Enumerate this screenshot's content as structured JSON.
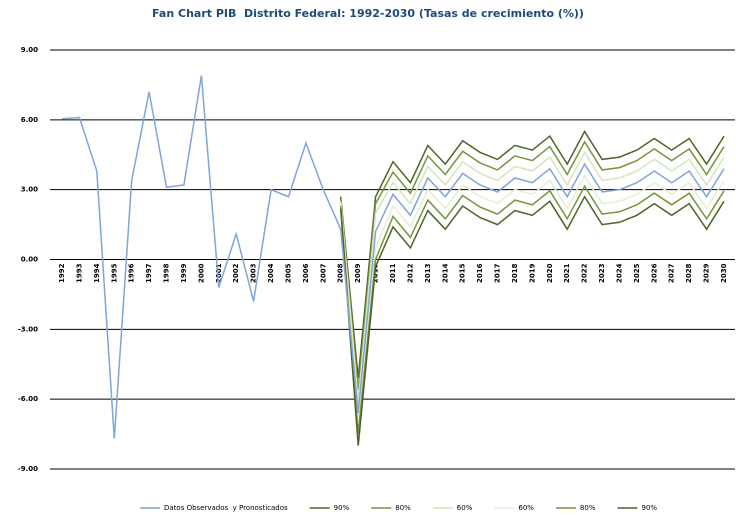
{
  "chart_data": {
    "type": "line",
    "title": "Fan Chart PIB  Distrito Federal: 1992-2030 (Tasas de crecimiento (%))",
    "categories": [
      "1992",
      "1993",
      "1994",
      "1995",
      "1996",
      "1997",
      "1998",
      "1999",
      "2000",
      "2001",
      "2002",
      "2003",
      "2004",
      "2005",
      "2006",
      "2007",
      "2008",
      "2009",
      "2010",
      "2011",
      "2012",
      "2013",
      "2014",
      "2015",
      "2016",
      "2017",
      "2018",
      "2019",
      "2020",
      "2021",
      "2022",
      "2023",
      "2024",
      "2025",
      "2026",
      "2027",
      "2028",
      "2029",
      "2030"
    ],
    "ylim": [
      -9,
      9
    ],
    "yticks": [
      {
        "value": -9,
        "label": "-9.00"
      },
      {
        "value": -6,
        "label": "-6.00"
      },
      {
        "value": -3,
        "label": "-3.00"
      },
      {
        "value": 0,
        "label": "0.00"
      },
      {
        "value": 3,
        "label": "3.00"
      },
      {
        "value": 6,
        "label": "6.00"
      },
      {
        "value": 9,
        "label": "9.00"
      }
    ],
    "grid": true,
    "legend": "bottom",
    "series": [
      {
        "name": "90%",
        "color": "#4f6228",
        "values": [
          null,
          null,
          null,
          null,
          null,
          null,
          null,
          null,
          null,
          null,
          null,
          null,
          null,
          null,
          null,
          null,
          2.7,
          -5.1,
          2.7,
          4.2,
          3.3,
          4.9,
          4.1,
          5.1,
          4.6,
          4.3,
          4.9,
          4.7,
          5.3,
          4.1,
          5.5,
          4.3,
          4.4,
          4.7,
          5.2,
          4.7,
          5.2,
          4.1,
          5.3
        ]
      },
      {
        "name": "80%",
        "color": "#77933c",
        "values": [
          null,
          null,
          null,
          null,
          null,
          null,
          null,
          null,
          null,
          null,
          null,
          null,
          null,
          null,
          null,
          null,
          2.6,
          -5.6,
          2.4,
          3.75,
          2.85,
          4.45,
          3.65,
          4.65,
          4.15,
          3.85,
          4.45,
          4.25,
          4.85,
          3.65,
          5.05,
          3.85,
          3.95,
          4.25,
          4.75,
          4.25,
          4.75,
          3.65,
          4.85
        ]
      },
      {
        "name": "60%",
        "color": "#d7e4bd",
        "values": [
          null,
          null,
          null,
          null,
          null,
          null,
          null,
          null,
          null,
          null,
          null,
          null,
          null,
          null,
          null,
          null,
          2.5,
          -6.1,
          2.0,
          3.3,
          2.4,
          4.0,
          3.2,
          4.2,
          3.7,
          3.4,
          4.0,
          3.8,
          4.4,
          3.2,
          4.6,
          3.4,
          3.5,
          3.8,
          4.3,
          3.8,
          4.3,
          3.2,
          4.4
        ]
      },
      {
        "name": "60%",
        "color": "#e6eed5",
        "values": [
          null,
          null,
          null,
          null,
          null,
          null,
          null,
          null,
          null,
          null,
          null,
          null,
          null,
          null,
          null,
          null,
          2.4,
          -7.0,
          0.5,
          2.3,
          1.4,
          3.0,
          2.2,
          3.2,
          2.7,
          2.4,
          3.0,
          2.8,
          3.4,
          2.2,
          3.6,
          2.4,
          2.5,
          2.8,
          3.3,
          2.8,
          3.3,
          2.2,
          3.4
        ]
      },
      {
        "name": "80%",
        "color": "#77933c",
        "values": [
          null,
          null,
          null,
          null,
          null,
          null,
          null,
          null,
          null,
          null,
          null,
          null,
          null,
          null,
          null,
          null,
          2.3,
          -7.5,
          0.0,
          1.85,
          0.95,
          2.55,
          1.75,
          2.75,
          2.25,
          1.95,
          2.55,
          2.35,
          2.95,
          1.75,
          3.15,
          1.95,
          2.05,
          2.35,
          2.85,
          2.35,
          2.85,
          1.75,
          2.95
        ]
      },
      {
        "name": "90%",
        "color": "#4f6228",
        "values": [
          null,
          null,
          null,
          null,
          null,
          null,
          null,
          null,
          null,
          null,
          null,
          null,
          null,
          null,
          null,
          null,
          2.2,
          -8.0,
          -0.3,
          1.4,
          0.5,
          2.1,
          1.3,
          2.3,
          1.8,
          1.5,
          2.1,
          1.9,
          2.5,
          1.3,
          2.7,
          1.5,
          1.6,
          1.9,
          2.4,
          1.9,
          2.4,
          1.3,
          2.5
        ]
      },
      {
        "name": "Datos Observados  y Pronosticados",
        "color": "#7ea6d8",
        "values": [
          6.05,
          6.1,
          3.8,
          -7.7,
          3.4,
          7.2,
          3.1,
          3.2,
          7.9,
          -1.2,
          1.1,
          -1.8,
          3.0,
          2.7,
          5.0,
          3.0,
          1.3,
          -6.6,
          1.2,
          2.8,
          1.9,
          3.5,
          2.7,
          3.7,
          3.2,
          2.9,
          3.5,
          3.3,
          3.9,
          2.7,
          4.1,
          2.9,
          3.0,
          3.3,
          3.8,
          3.3,
          3.8,
          2.7,
          3.9
        ]
      }
    ]
  }
}
